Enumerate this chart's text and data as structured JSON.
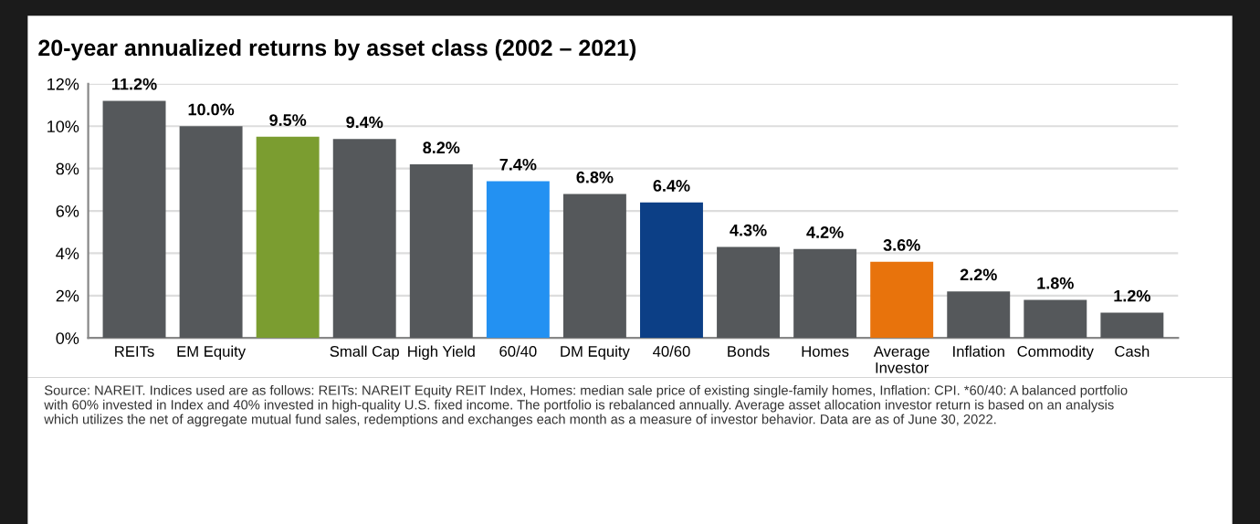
{
  "chart_data": {
    "type": "bar",
    "title": "20-year annualized returns by asset class (2002 – 2021)",
    "categories": [
      "REITs",
      "EM Equity",
      null,
      "Small Cap",
      "High Yield",
      "60/40",
      "DM Equity",
      "40/60",
      "Bonds",
      "Homes",
      "Average\nInvestor",
      "Inflation",
      "Commodity",
      "Cash"
    ],
    "values": [
      11.2,
      10.0,
      9.5,
      9.4,
      8.2,
      7.4,
      6.8,
      6.4,
      4.3,
      4.2,
      3.6,
      2.2,
      1.8,
      1.2
    ],
    "colors": [
      "#55585b",
      "#55585b",
      "#7b9d30",
      "#55585b",
      "#55585b",
      "#2391f2",
      "#55585b",
      "#0c3f86",
      "#55585b",
      "#55585b",
      "#e8730c",
      "#55585b",
      "#55585b",
      "#55585b"
    ],
    "value_labels": [
      "11.2%",
      "10.0%",
      "9.5%",
      "9.4%",
      "8.2%",
      "7.4%",
      "6.8%",
      "6.4%",
      "4.3%",
      "4.2%",
      "3.6%",
      "2.2%",
      "1.8%",
      "1.2%"
    ],
    "ylim": [
      0,
      12
    ],
    "yticks": [
      {
        "value": 0,
        "label": "0%"
      },
      {
        "value": 2,
        "label": "2%"
      },
      {
        "value": 4,
        "label": "4%"
      },
      {
        "value": 6,
        "label": "6%"
      },
      {
        "value": 8,
        "label": "8%"
      },
      {
        "value": 10,
        "label": "10%"
      },
      {
        "value": 12,
        "label": "12%"
      }
    ],
    "grid": "y",
    "annotations": [
      "Source: NAREIT. Indices used are as follows: REITs: NAREIT Equity REIT Index, Homes: median sale price of existing single-family homes, Inflation: CPI. *60/40: A balanced portfolio\nwith 60% invested in Index and 40% invested in high-quality U.S. fixed income. The portfolio is rebalanced annually. Average asset allocation investor return is based on an analysis\nwhich utilizes the net of aggregate mutual fund sales, redemptions and exchanges each month as a measure of investor behavior. Data are as of June 30, 2022."
    ]
  }
}
